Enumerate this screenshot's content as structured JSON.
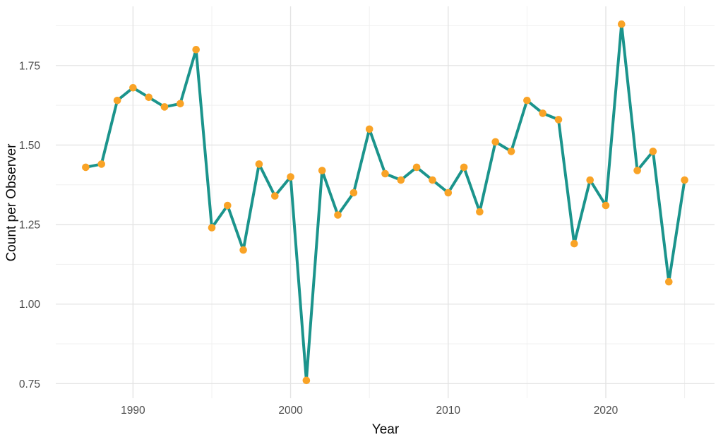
{
  "chart_data": {
    "type": "line",
    "title": "",
    "xlabel": "Year",
    "ylabel": "Count per Observer",
    "x": [
      1987,
      1988,
      1989,
      1990,
      1991,
      1992,
      1993,
      1994,
      1995,
      1996,
      1997,
      1998,
      1999,
      2000,
      2001,
      2002,
      2003,
      2004,
      2005,
      2006,
      2007,
      2008,
      2009,
      2010,
      2011,
      2012,
      2013,
      2014,
      2015,
      2016,
      2017,
      2018,
      2019,
      2020,
      2021,
      2022,
      2023,
      2024,
      2025
    ],
    "values": [
      1.43,
      1.44,
      1.64,
      1.68,
      1.65,
      1.62,
      1.63,
      1.8,
      1.24,
      1.31,
      1.17,
      1.44,
      1.34,
      1.4,
      0.76,
      1.42,
      1.28,
      1.35,
      1.55,
      1.41,
      1.39,
      1.43,
      1.39,
      1.35,
      1.43,
      1.29,
      1.51,
      1.48,
      1.64,
      1.6,
      1.58,
      1.19,
      1.39,
      1.31,
      1.88,
      1.42,
      1.48,
      1.07,
      1.39
    ],
    "x_ticks": [
      1990,
      2000,
      2010,
      2020
    ],
    "x_minor_gridlines": [
      1995,
      2005,
      2015,
      2025
    ],
    "y_ticks": [
      0.75,
      1.0,
      1.25,
      1.5,
      1.75
    ],
    "y_tick_labels": [
      "0.75",
      "1.00",
      "1.25",
      "1.50",
      "1.75"
    ],
    "y_minor_gridlines": [
      0.875,
      1.125,
      1.375,
      1.625,
      1.875
    ],
    "xlim": [
      1985.1,
      2026.9
    ],
    "ylim": [
      0.704,
      1.936
    ],
    "grid": true,
    "legend_position": "none",
    "colors": {
      "line": "#1B948C",
      "point": "#F9A326",
      "grid_major": "#E4E4E4",
      "grid_minor": "#F0F0F0",
      "tick_label": "#4D4D4D",
      "axis_title": "#0A0A0A"
    }
  }
}
